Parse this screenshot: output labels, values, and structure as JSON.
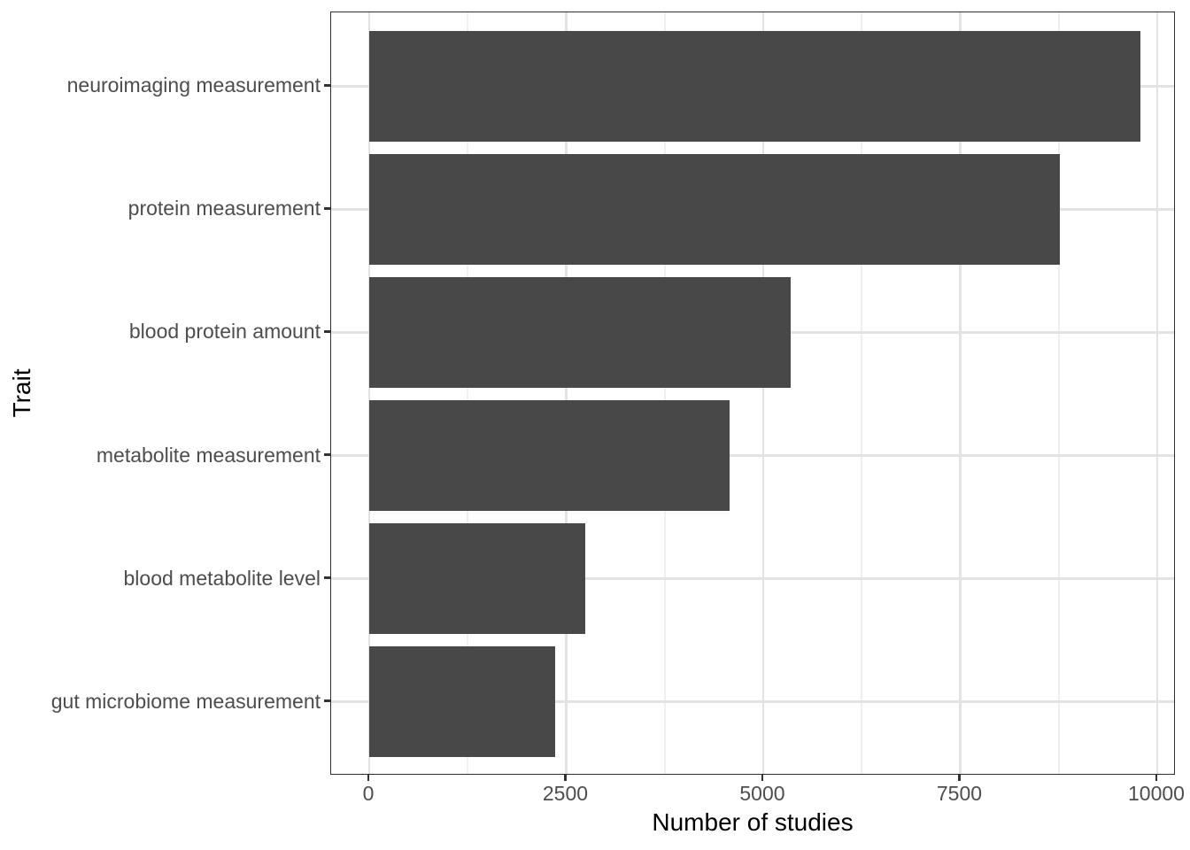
{
  "chart_data": {
    "type": "bar",
    "orientation": "horizontal",
    "title": "",
    "xlabel": "Number of studies",
    "ylabel": "Trait",
    "categories": [
      "neuroimaging measurement",
      "protein measurement",
      "blood protein amount",
      "metabolite measurement",
      "blood metabolite level",
      "gut microbiome measurement"
    ],
    "values": [
      9790,
      8760,
      5350,
      4570,
      2740,
      2360
    ],
    "x_ticks": [
      0,
      2500,
      5000,
      7500,
      10000
    ],
    "x_tick_labels": [
      "0",
      "2500",
      "5000",
      "7500",
      "10000"
    ],
    "x_minor_ticks": [
      1250,
      3750,
      6250,
      8750
    ],
    "xlim": [
      -483,
      10236
    ],
    "grid": {
      "vertical_major": true,
      "vertical_minor": true,
      "horizontal_major": true,
      "horizontal_minor": false
    },
    "legend": "none",
    "colors": {
      "bar_fill": "#484848",
      "panel_border": "#2D2D2D",
      "grid_major": "#E3E3E3",
      "grid_minor": "#EFEFEF",
      "axis_text": "#4D4D4D",
      "axis_title": "#000000",
      "tick_mark": "#333333",
      "background": "#FFFFFF"
    }
  }
}
